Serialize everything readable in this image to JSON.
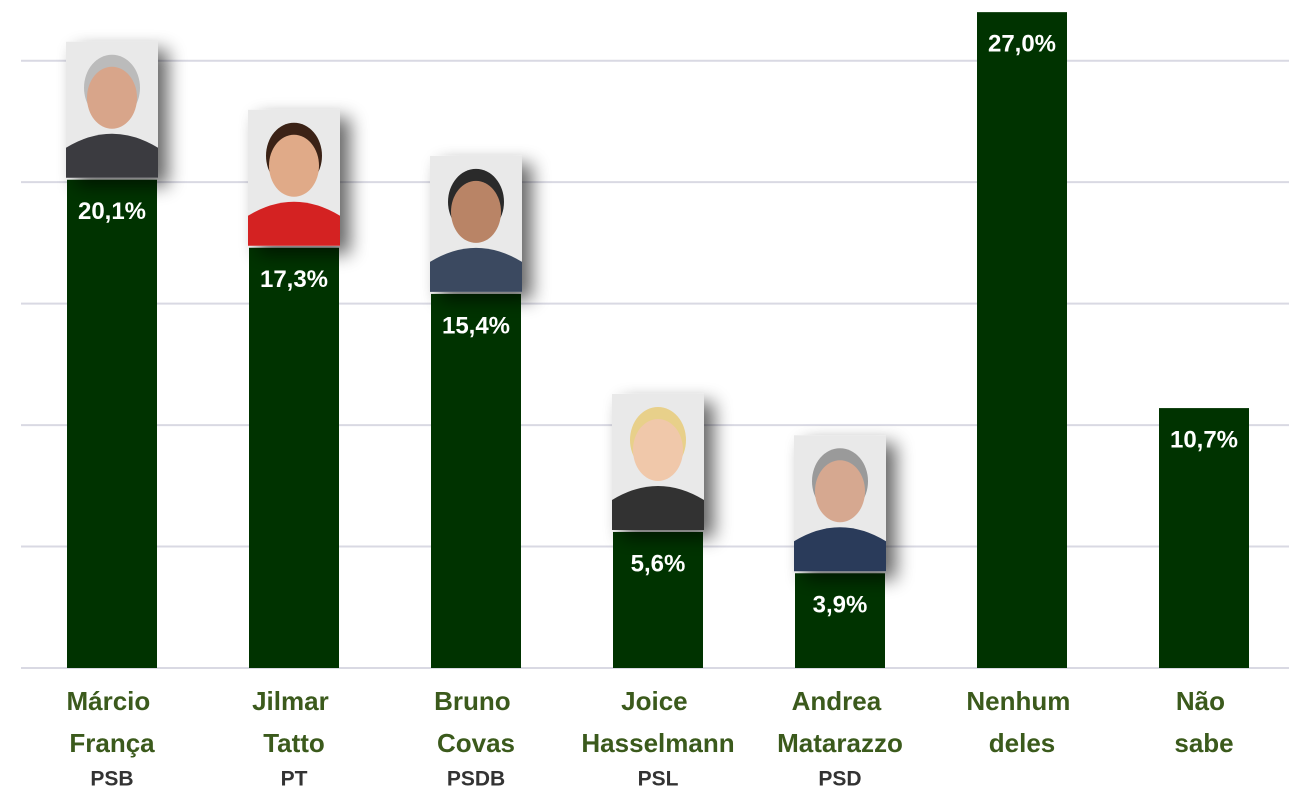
{
  "chart_data": {
    "type": "bar",
    "categories": [
      "Márcio França",
      "Jilmar Tatto",
      "Bruno Covas",
      "Joice Hasselmann",
      "Andrea Matarazzo",
      "Nenhum deles",
      "Não sabe"
    ],
    "parties": [
      "PSB",
      "PT",
      "PSDB",
      "PSL",
      "PSD",
      null,
      null
    ],
    "values": [
      20.1,
      17.3,
      15.4,
      5.6,
      3.9,
      27.0,
      10.7
    ],
    "value_labels": [
      "20,1%",
      "17,3%",
      "15,4%",
      "5,6%",
      "3,9%",
      "27,0%",
      "10,7%"
    ],
    "color": "#003300",
    "ylim": [
      0,
      27.5
    ],
    "yticks": [
      0,
      5,
      10,
      15,
      20,
      25
    ],
    "grid": true
  }
}
